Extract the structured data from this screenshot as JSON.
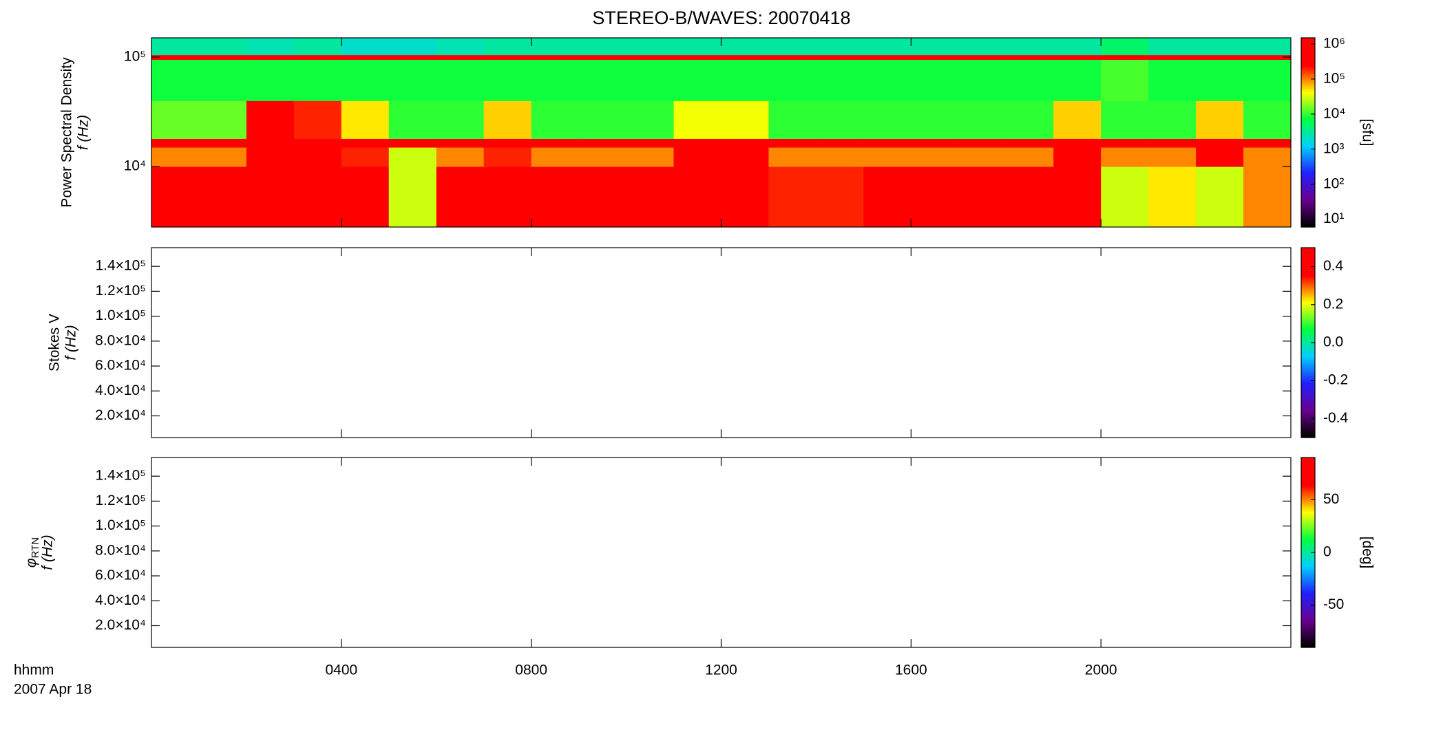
{
  "chart_data": [
    {
      "type": "heatmap",
      "title": "STEREO-B/WAVES: 20070418",
      "ylabel": "Power Spectral Density",
      "ylabel2": "f (Hz)",
      "xlabel": "hhmm",
      "date": "2007 Apr 18",
      "xlim": [
        0,
        24
      ],
      "xticks": [
        {
          "value": 4,
          "label": "0400"
        },
        {
          "value": 8,
          "label": "0800"
        },
        {
          "value": 12,
          "label": "1200"
        },
        {
          "value": 16,
          "label": "1600"
        },
        {
          "value": 20,
          "label": "2000"
        }
      ],
      "log_y": true,
      "ylim": [
        2800,
        150000
      ],
      "yticks": [
        {
          "value": 10000,
          "label": "10⁴"
        },
        {
          "value": 100000,
          "label": "10⁵"
        }
      ],
      "xbins": [
        0,
        1,
        2,
        3,
        4,
        5,
        6,
        7,
        8,
        9,
        10,
        11,
        12,
        13,
        14,
        15,
        16,
        17,
        18,
        19,
        20,
        21,
        22,
        23,
        24
      ],
      "ybins": [
        2800,
        10000,
        15000,
        18000,
        40000,
        95000,
        105000,
        150000
      ],
      "values": [
        [
          800000,
          800000,
          1000000,
          1000000,
          1000000,
          30000,
          600000,
          1000000,
          1000000,
          1000000,
          1000000,
          1000000,
          1000000,
          200000,
          200000,
          300000,
          300000,
          300000,
          400000,
          600000,
          30000,
          50000,
          30000,
          100000
        ],
        [
          100000,
          100000,
          800000,
          800000,
          200000,
          30000,
          100000,
          200000,
          100000,
          100000,
          100000,
          700000,
          700000,
          100000,
          100000,
          100000,
          100000,
          100000,
          100000,
          700000,
          100000,
          100000,
          300000,
          100000
        ],
        [
          600000,
          600000,
          600000,
          600000,
          600000,
          600000,
          600000,
          600000,
          600000,
          600000,
          600000,
          600000,
          600000,
          600000,
          600000,
          600000,
          600000,
          600000,
          600000,
          600000,
          600000,
          600000,
          600000,
          600000
        ],
        [
          15000,
          15000,
          800000,
          200000,
          50000,
          10000,
          10000,
          60000,
          10000,
          10000,
          10000,
          40000,
          40000,
          10000,
          10000,
          10000,
          10000,
          10000,
          10000,
          60000,
          10000,
          10000,
          60000,
          10000
        ],
        [
          8000,
          8000,
          8000,
          8000,
          8000,
          8000,
          8000,
          8000,
          8000,
          8000,
          8000,
          8000,
          8000,
          8000,
          8000,
          8000,
          8000,
          8000,
          8000,
          8000,
          12000,
          8000,
          8000,
          8000
        ],
        [
          500000,
          500000,
          500000,
          500000,
          500000,
          500000,
          500000,
          500000,
          500000,
          500000,
          500000,
          500000,
          500000,
          500000,
          500000,
          500000,
          500000,
          500000,
          500000,
          500000,
          500000,
          500000,
          500000,
          500000
        ],
        [
          3000,
          3000,
          2500,
          3000,
          2000,
          2000,
          2500,
          3000,
          3000,
          3000,
          3000,
          3000,
          3000,
          3000,
          3000,
          3000,
          3000,
          3000,
          3000,
          3000,
          5000,
          3000,
          3000,
          3000
        ]
      ],
      "colormap": [
        "#000000",
        "#6a0090",
        "#2020ff",
        "#00d0ff",
        "#00ff40",
        "#ffff00",
        "#ff0000",
        "#ff0000"
      ],
      "log_c": true,
      "clim": [
        6,
        1500000
      ],
      "cticks": [
        {
          "value": 10,
          "label": "10¹"
        },
        {
          "value": 100,
          "label": "10²"
        },
        {
          "value": 1000,
          "label": "10³"
        },
        {
          "value": 10000,
          "label": "10⁴"
        },
        {
          "value": 100000,
          "label": "10⁵"
        },
        {
          "value": 1000000,
          "label": "10⁶"
        }
      ],
      "clabel": "[sfu]"
    },
    {
      "type": "heatmap",
      "ylabel": "Stokes V",
      "ylabel2": "f (Hz)",
      "ylim": [
        2600,
        155000
      ],
      "yticks": [
        {
          "value": 20000,
          "label": "2.0×10⁴"
        },
        {
          "value": 40000,
          "label": "4.0×10⁴"
        },
        {
          "value": 60000,
          "label": "6.0×10⁴"
        },
        {
          "value": 80000,
          "label": "8.0×10⁴"
        },
        {
          "value": 100000,
          "label": "1.0×10⁵"
        },
        {
          "value": 120000,
          "label": "1.2×10⁵"
        },
        {
          "value": 140000,
          "label": "1.4×10⁵"
        }
      ],
      "colormap": [
        "#000000",
        "#6a0090",
        "#2020ff",
        "#00d0ff",
        "#00ff40",
        "#ffff00",
        "#ff0000",
        "#ff0000"
      ],
      "clim": [
        -0.5,
        0.5
      ],
      "cticks": [
        -0.4,
        -0.2,
        {
          "value": 0,
          "label": "0.0"
        },
        0.2,
        0.4
      ]
    },
    {
      "type": "heatmap",
      "ylabel": "φ",
      "ylabel_sub": "RTN",
      "ylabel2": "f (Hz)",
      "ylim": [
        2600,
        155000
      ],
      "yticks": [
        {
          "value": 20000,
          "label": "2.0×10⁴"
        },
        {
          "value": 40000,
          "label": "4.0×10⁴"
        },
        {
          "value": 60000,
          "label": "6.0×10⁴"
        },
        {
          "value": 80000,
          "label": "8.0×10⁴"
        },
        {
          "value": 100000,
          "label": "1.0×10⁵"
        },
        {
          "value": 120000,
          "label": "1.2×10⁵"
        },
        {
          "value": 140000,
          "label": "1.4×10⁵"
        }
      ],
      "colormap": [
        "#000000",
        "#6a0090",
        "#2020ff",
        "#00d0ff",
        "#00ff40",
        "#ffff00",
        "#ff0000",
        "#ff0000"
      ],
      "clim": [
        -90,
        90
      ],
      "cticks": [
        -50,
        0,
        50
      ],
      "clabel": "[deg]"
    }
  ]
}
